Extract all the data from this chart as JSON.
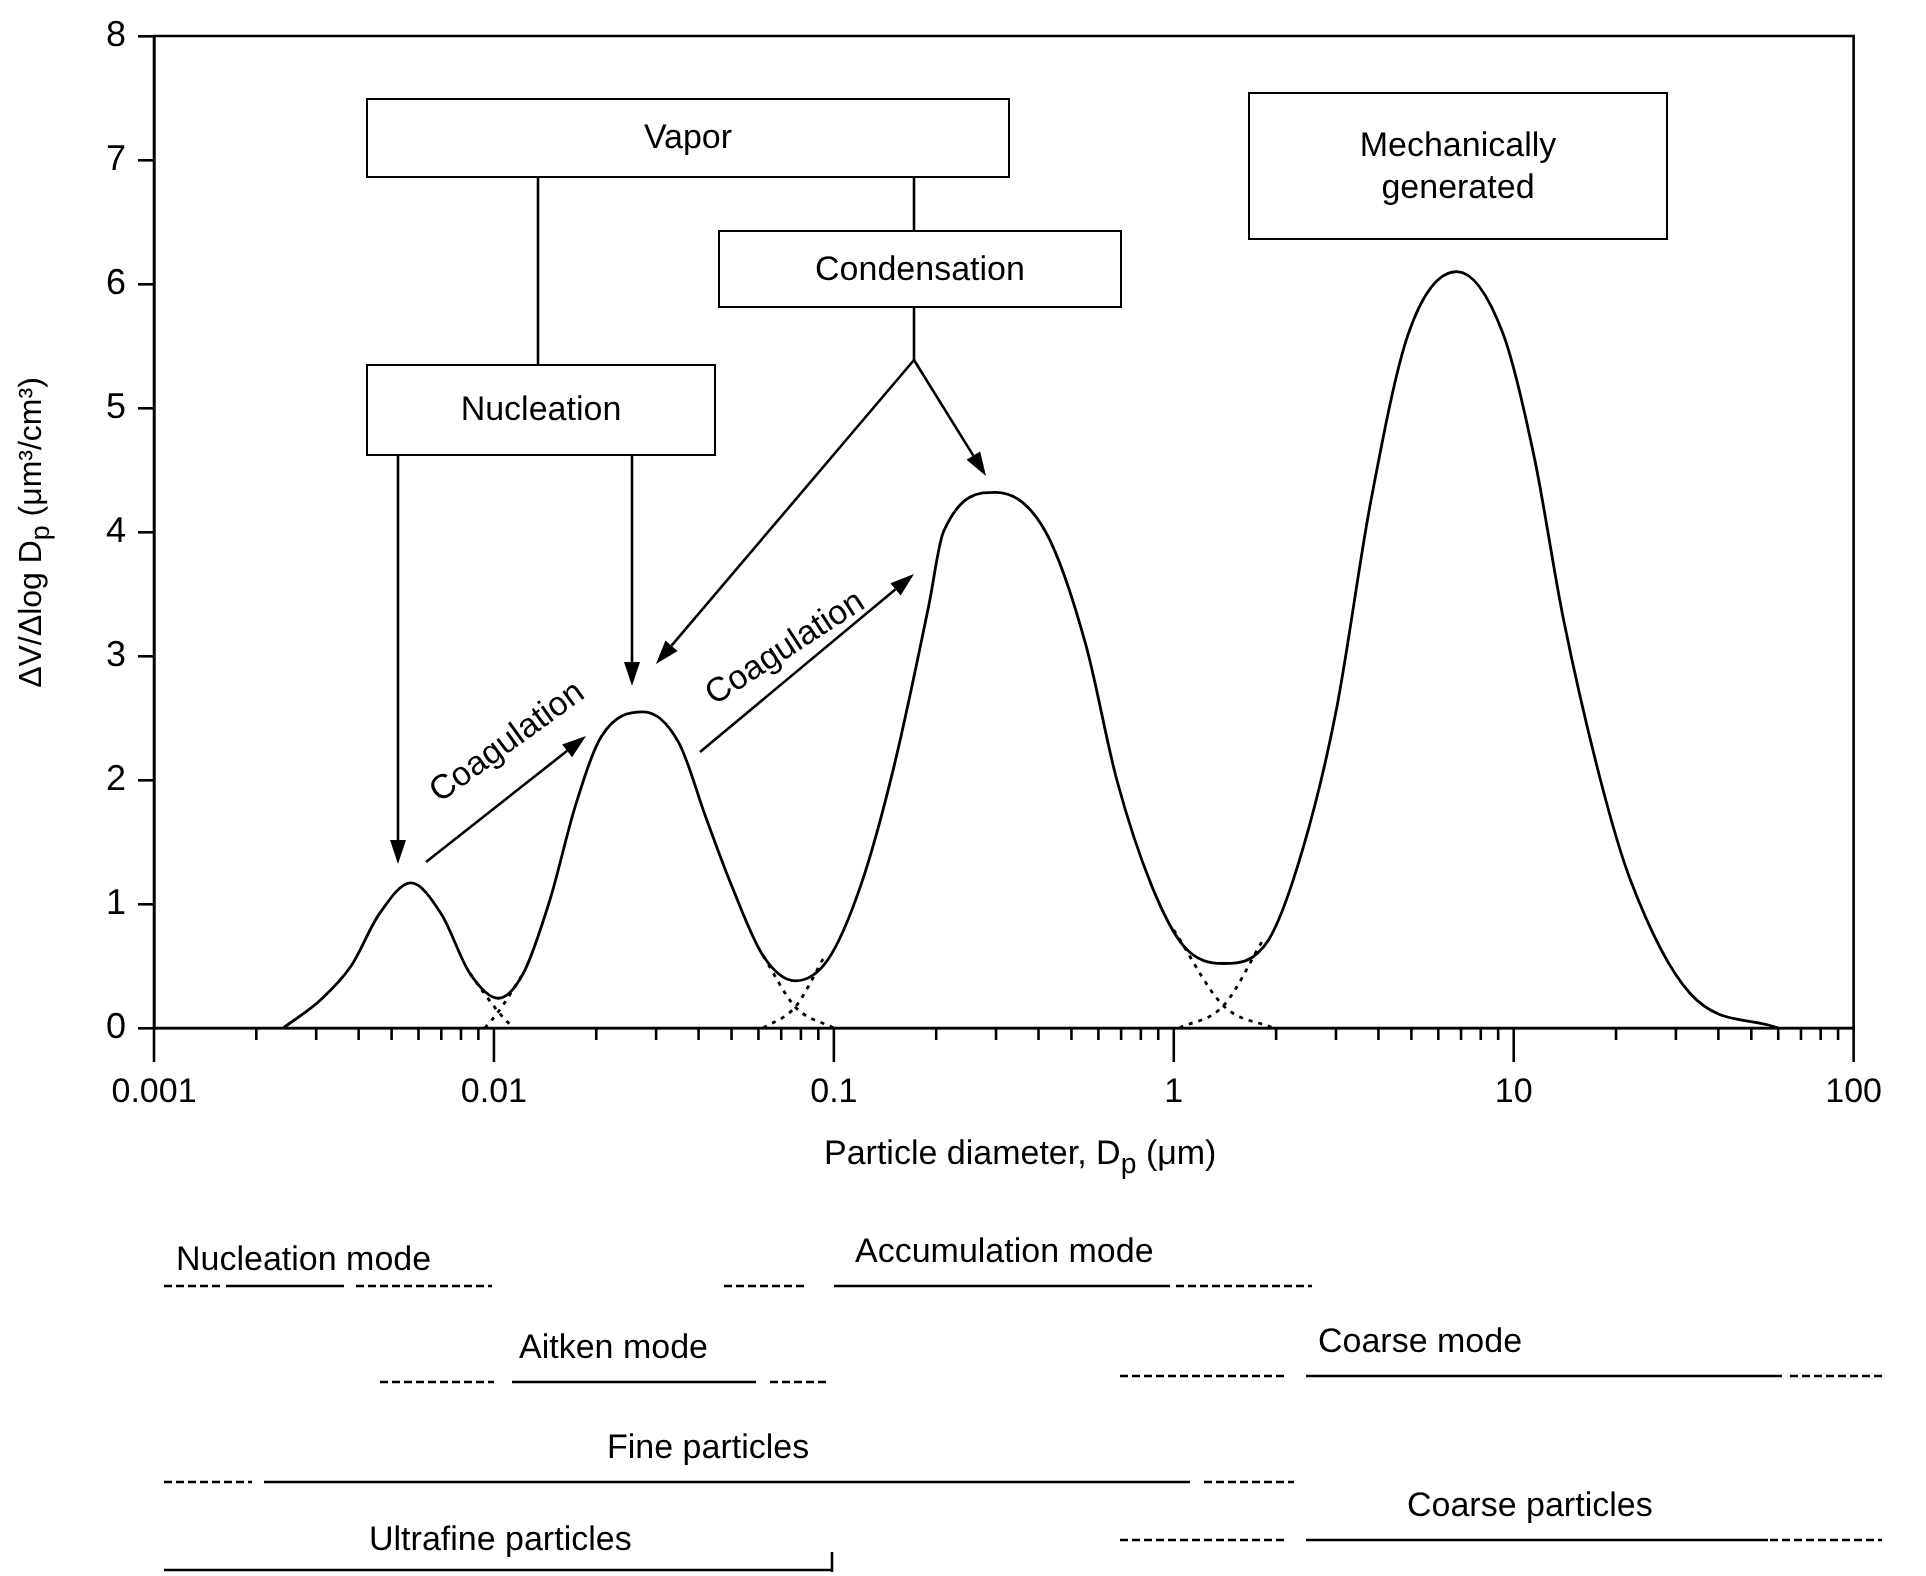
{
  "chart_data": {
    "type": "line",
    "xlabel": "Particle diameter, D$_{p}$ (μm)",
    "ylabel": "ΔV/Δlog D$_{p}$ (μm³/cm³)",
    "log": "x",
    "marker": "none",
    "line_style": "solid",
    "xlim": [
      0.001,
      100
    ],
    "ylim": [
      0,
      8
    ],
    "yticks": [
      0,
      1,
      2,
      3,
      4,
      5,
      6,
      7,
      8
    ],
    "xticks": [
      0.001,
      {
        "value": 0.002,
        "label": null
      },
      {
        "value": 0.003,
        "label": null
      },
      {
        "value": 0.004,
        "label": null
      },
      {
        "value": 0.005,
        "label": null
      },
      {
        "value": 0.006,
        "label": null
      },
      {
        "value": 0.007,
        "label": null
      },
      {
        "value": 0.008,
        "label": null
      },
      {
        "value": 0.009,
        "label": null
      },
      0.01,
      {
        "value": 0.02,
        "label": null
      },
      {
        "value": 0.03,
        "label": null
      },
      {
        "value": 0.04,
        "label": null
      },
      {
        "value": 0.05,
        "label": null
      },
      {
        "value": 0.06,
        "label": null
      },
      {
        "value": 0.07,
        "label": null
      },
      {
        "value": 0.08,
        "label": null
      },
      {
        "value": 0.09,
        "label": null
      },
      0.1,
      {
        "value": 0.2,
        "label": null
      },
      {
        "value": 0.3,
        "label": null
      },
      {
        "value": 0.4,
        "label": null
      },
      {
        "value": 0.5,
        "label": null
      },
      {
        "value": 0.6,
        "label": null
      },
      {
        "value": 0.7,
        "label": null
      },
      {
        "value": 0.8,
        "label": null
      },
      {
        "value": 0.9,
        "label": null
      },
      1,
      {
        "value": 2,
        "label": null
      },
      {
        "value": 3,
        "label": null
      },
      {
        "value": 4,
        "label": null
      },
      {
        "value": 5,
        "label": null
      },
      {
        "value": 6,
        "label": null
      },
      {
        "value": 7,
        "label": null
      },
      {
        "value": 8,
        "label": null
      },
      {
        "value": 9,
        "label": null
      },
      10,
      {
        "value": 20,
        "label": null
      },
      {
        "value": 30,
        "label": null
      },
      {
        "value": 40,
        "label": null
      },
      {
        "value": 50,
        "label": null
      },
      {
        "value": 60,
        "label": null
      },
      {
        "value": 70,
        "label": null
      },
      {
        "value": 80,
        "label": null
      },
      {
        "value": 90,
        "label": null
      },
      100
    ],
    "series": [
      {
        "color": "#000000",
        "x": [
          0.0024,
          0.0031,
          0.0038,
          0.0046,
          0.0057,
          0.007,
          0.0085,
          0.0103,
          0.0122,
          0.0146,
          0.0174,
          0.0207,
          0.0275,
          0.035,
          0.042,
          0.05,
          0.062,
          0.077,
          0.096,
          0.12,
          0.15,
          0.19,
          0.21,
          0.3,
          0.42,
          0.55,
          0.68,
          0.86,
          1.07,
          1.4,
          1.9,
          2.4,
          3,
          3.8,
          4.9,
          6.8,
          9.3,
          11.5,
          14,
          18,
          22,
          33,
          60
        ],
        "values": [
          0,
          0.23,
          0.5,
          0.92,
          1.17,
          0.92,
          0.44,
          0.24,
          0.44,
          1.03,
          1.8,
          2.35,
          2.55,
          2.3,
          1.7,
          1.15,
          0.58,
          0.38,
          0.55,
          1.15,
          2.1,
          3.4,
          4,
          4.32,
          4,
          3.1,
          2,
          1.15,
          0.66,
          0.52,
          0.71,
          1.45,
          2.55,
          4.25,
          5.6,
          6.1,
          5.6,
          4.6,
          3.3,
          2,
          1.2,
          0.28,
          0
        ]
      },
      {
        "color": "#000000",
        "line_style": "dotted",
        "x": [
          0.0085,
          0.0103,
          0.0114
        ],
        "values": [
          0.44,
          0.13,
          0
        ]
      },
      {
        "color": "#000000",
        "line_style": "dotted",
        "x": [
          0.0094,
          0.0103,
          0.0122
        ],
        "values": [
          0,
          0.13,
          0.44
        ]
      },
      {
        "color": "#000000",
        "line_style": "dotted",
        "x": [
          0.062,
          0.077,
          0.1
        ],
        "values": [
          0.58,
          0.17,
          0
        ]
      },
      {
        "color": "#000000",
        "line_style": "dotted",
        "x": [
          0.062,
          0.077,
          0.094
        ],
        "values": [
          0,
          0.17,
          0.58
        ]
      },
      {
        "color": "#000000",
        "line_style": "dotted",
        "x": [
          1,
          1.4,
          1.96
        ],
        "values": [
          0.79,
          0.18,
          0
        ]
      },
      {
        "color": "#000000",
        "line_style": "dotted",
        "x": [
          1.04,
          1.4,
          1.83
        ],
        "values": [
          0,
          0.18,
          0.71
        ]
      }
    ],
    "annotations": [
      "Vapor",
      "Condensation",
      "Nucleation",
      "Mechanically generated",
      "Coagulation",
      "Coagulation",
      "Nucleation mode",
      "Accumulation mode",
      "Aitken mode",
      "Coarse mode",
      "Fine particles",
      "Coarse particles",
      "Ultrafine particles"
    ]
  }
}
